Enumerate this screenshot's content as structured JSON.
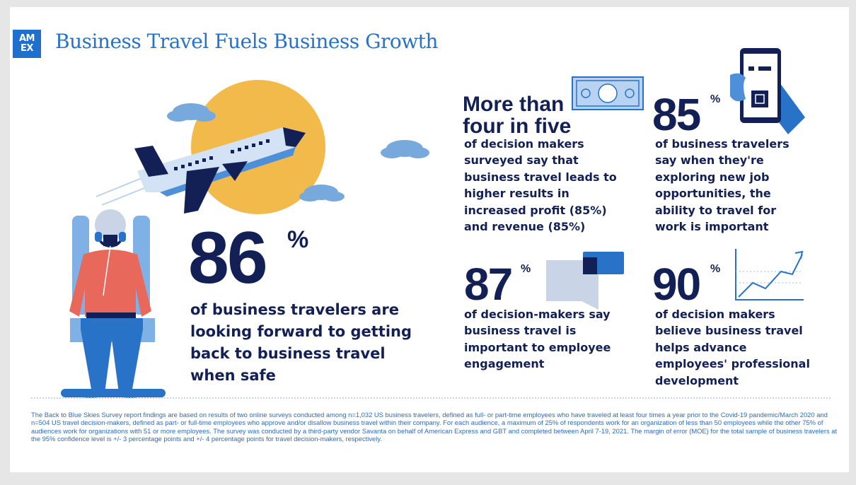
{
  "brand": {
    "logo_line1": "AM",
    "logo_line2": "EX",
    "logo_icon": "amex-logo"
  },
  "title": "Business Travel Fuels Business Growth",
  "colors": {
    "navy": "#132056",
    "blue": "#2873c7",
    "sun": "#f2b94b",
    "shirt": "#e8695b",
    "cloud": "#78a9dd"
  },
  "stats": {
    "main": {
      "number": "86",
      "unit": "%",
      "text": "of business travelers are looking forward to getting back to business travel when safe"
    },
    "four_in_five": {
      "headline_line1": "More than",
      "headline_line2": "four in five",
      "text": "of decision makers surveyed say that business travel leads to higher results in increased profit (85%) and revenue (85%)",
      "icon": "dollar-bill-icon"
    },
    "s85": {
      "number": "85",
      "unit": "%",
      "text": "of business travelers say when they're exploring new job opportunities, the ability to travel for work is important",
      "icon": "phone-boarding-pass-icon"
    },
    "s87": {
      "number": "87",
      "unit": "%",
      "text": "of decision-makers say business travel is important to employee engagement",
      "icon": "chat-bubbles-icon"
    },
    "s90": {
      "number": "90",
      "unit": "%",
      "text": "of decision makers believe business travel helps advance employees' professional development",
      "icon": "growth-chart-icon"
    }
  },
  "footnote": "The Back to Blue Skies Survey report findings are based on results of two online surveys conducted among n=1,032 US business travelers, defined as full- or part-time employees who have traveled at least four times a year prior to the Covid-19 pandemic/March 2020 and n=504 US travel decision-makers, defined as part- or full-time employees who approve and/or disallow business travel within their company. For each audience, a maximum of 25% of respondents work for an organization of less than 50 employees while the other 75% of audiences work for organizations with 51 or more employees. The survey was conducted by a third-party vendor Savanta on behalf of American Express and GBT and completed between April 7-19, 2021. The margin of error (MOE) for the total sample of business travelers at the 95% confidence level is +/- 3 percentage points and +/- 4 percentage points for travel decision-makers, respectively."
}
